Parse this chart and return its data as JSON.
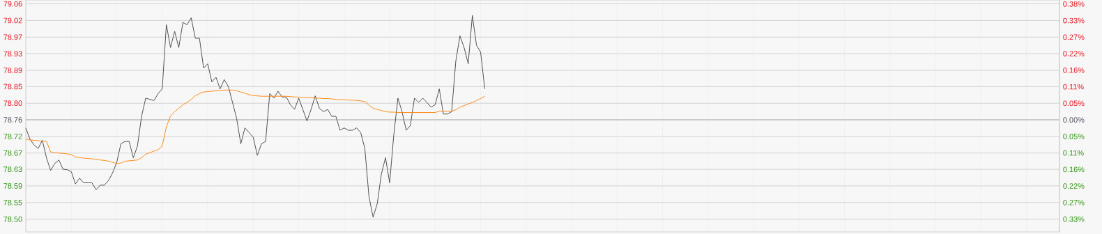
{
  "chart_data": {
    "type": "line",
    "categories": [
      null,
      null,
      null,
      null,
      null,
      null,
      null,
      null,
      null,
      null,
      null,
      null,
      null,
      null,
      null,
      null,
      null,
      null,
      null,
      null,
      null,
      null,
      null,
      null,
      null,
      null,
      null,
      null,
      null,
      null,
      null,
      null,
      null,
      null,
      null,
      null,
      null,
      null,
      null,
      null,
      null,
      null,
      null,
      null,
      null,
      null,
      null,
      null,
      null,
      null,
      null,
      null,
      null,
      null,
      null,
      null,
      null,
      null,
      null,
      null,
      null,
      null,
      null,
      null,
      null,
      null,
      null,
      null,
      null,
      null,
      null,
      null,
      null,
      null,
      null,
      null,
      null,
      null,
      null,
      null,
      null,
      null,
      null,
      null,
      null,
      null,
      null,
      null,
      null,
      null,
      null,
      null,
      null,
      null,
      null,
      null,
      null,
      null,
      null,
      null,
      null,
      null,
      null,
      null,
      null,
      null,
      null,
      null,
      null,
      null,
      null,
      null,
      null,
      null,
      null,
      null,
      null,
      null,
      null,
      null,
      null,
      null,
      null,
      null,
      null,
      null,
      null,
      null,
      null,
      null,
      null,
      null,
      null,
      null,
      null,
      null,
      null,
      null,
      null,
      null,
      null,
      null,
      null,
      null,
      null,
      null,
      null,
      null,
      null,
      null,
      null,
      null,
      null,
      null,
      null,
      null,
      null,
      null,
      null,
      null,
      null,
      null,
      null,
      null,
      null,
      null,
      null,
      null,
      null,
      null,
      null,
      null,
      null,
      null,
      null,
      null,
      null,
      null,
      null,
      null,
      null,
      null,
      null,
      null,
      null,
      null,
      null,
      null,
      null,
      null,
      null,
      null,
      null,
      null,
      null,
      null,
      null,
      null,
      null,
      null,
      null,
      null,
      null,
      null,
      null,
      null,
      null,
      null,
      null,
      null,
      null,
      null,
      null,
      null,
      null,
      null,
      null,
      null,
      null,
      null,
      null,
      null,
      null,
      null,
      null,
      null,
      null,
      null,
      null,
      null,
      null,
      null,
      null,
      null,
      null,
      null,
      null,
      null,
      null,
      null,
      null,
      null,
      null,
      null,
      null,
      null,
      null,
      null,
      null,
      null,
      null
    ],
    "series": [
      {
        "color": "#404040",
        "values": [
          78.739,
          78.71,
          78.695,
          78.686,
          78.707,
          78.662,
          78.629,
          78.647,
          78.656,
          78.632,
          78.631,
          78.626,
          78.594,
          78.609,
          78.597,
          78.597,
          78.597,
          78.579,
          78.591,
          78.591,
          78.603,
          78.623,
          78.65,
          78.698,
          78.704,
          78.704,
          78.662,
          78.692,
          78.769,
          78.816,
          78.813,
          78.81,
          78.828,
          78.84,
          79.006,
          78.947,
          78.989,
          78.947,
          79.012,
          79.006,
          79.024,
          78.971,
          78.971,
          78.894,
          78.905,
          78.858,
          78.87,
          78.84,
          78.864,
          78.846,
          78.805,
          78.763,
          78.698,
          78.739,
          78.727,
          78.715,
          78.668,
          78.698,
          78.704,
          78.828,
          78.816,
          78.834,
          78.819,
          78.819,
          78.799,
          78.787,
          78.816,
          78.787,
          78.757,
          78.787,
          78.822,
          78.79,
          78.781,
          78.787,
          78.769,
          78.769,
          78.733,
          78.739,
          78.733,
          78.733,
          78.739,
          78.727,
          78.686,
          78.561,
          78.508,
          78.543,
          78.62,
          78.662,
          78.597,
          78.721,
          78.816,
          78.781,
          78.733,
          78.745,
          78.816,
          78.805,
          78.816,
          78.805,
          78.793,
          78.799,
          78.84,
          78.775,
          78.775,
          78.781,
          78.912,
          78.977,
          78.947,
          78.905,
          79.03,
          78.953,
          78.935,
          78.84,
          null,
          null,
          null,
          null,
          null,
          null,
          null,
          null,
          null,
          null,
          null,
          null,
          null,
          null,
          null,
          null,
          null,
          null,
          null,
          null,
          null,
          null,
          null,
          null,
          null,
          null,
          null,
          null,
          null,
          null,
          null,
          null,
          null,
          null,
          null,
          null,
          null,
          null,
          null,
          null,
          null,
          null,
          null,
          null,
          null,
          null,
          null,
          null,
          null,
          null,
          null,
          null,
          null,
          null,
          null,
          null,
          null,
          null,
          null,
          null,
          null,
          null,
          null,
          null,
          null,
          null,
          null,
          null,
          null,
          null,
          null,
          null,
          null,
          null,
          null,
          null,
          null,
          null,
          null,
          null,
          null,
          null,
          null,
          null,
          null,
          null,
          null,
          null,
          null,
          null,
          null,
          null,
          null,
          null,
          null,
          null,
          null,
          null,
          null,
          null,
          null,
          null,
          null,
          null,
          null,
          null,
          null,
          null,
          null,
          null,
          null,
          null,
          null,
          null,
          null,
          null,
          null,
          null,
          null,
          null,
          null,
          null,
          null,
          null,
          null,
          null,
          null,
          null,
          null,
          null,
          null,
          null,
          null,
          null,
          null,
          null,
          null,
          null,
          null
        ]
      },
      {
        "color": "#ff8000",
        "values": [
          78.71,
          78.708,
          78.707,
          78.706,
          78.705,
          78.704,
          78.677,
          78.675,
          78.674,
          78.673,
          78.672,
          78.67,
          78.664,
          78.662,
          78.661,
          78.66,
          78.659,
          78.658,
          78.656,
          78.655,
          78.653,
          78.65,
          78.647,
          78.648,
          78.653,
          78.654,
          78.655,
          78.656,
          78.662,
          78.671,
          78.675,
          78.679,
          78.683,
          78.692,
          78.742,
          78.77,
          78.781,
          78.79,
          78.799,
          78.805,
          78.813,
          78.822,
          78.828,
          78.832,
          78.833,
          78.834,
          78.836,
          78.836,
          78.837,
          78.837,
          78.837,
          78.835,
          78.832,
          78.829,
          78.825,
          78.823,
          78.822,
          78.821,
          78.821,
          78.821,
          78.821,
          78.821,
          78.821,
          78.821,
          78.82,
          78.819,
          78.819,
          78.818,
          78.818,
          78.818,
          78.816,
          78.816,
          78.815,
          78.815,
          78.814,
          78.813,
          78.812,
          78.812,
          78.811,
          78.811,
          78.81,
          78.809,
          78.807,
          78.798,
          78.79,
          78.787,
          78.784,
          78.781,
          78.78,
          78.78,
          78.779,
          78.779,
          78.779,
          78.779,
          78.779,
          78.779,
          78.779,
          78.779,
          78.779,
          78.779,
          78.782,
          78.782,
          78.782,
          78.782,
          78.786,
          78.793,
          78.797,
          78.801,
          78.805,
          78.81,
          78.815,
          78.821,
          null,
          null,
          null,
          null,
          null,
          null,
          null,
          null,
          null,
          null,
          null,
          null,
          null,
          null,
          null,
          null,
          null,
          null,
          null,
          null,
          null,
          null,
          null,
          null,
          null,
          null,
          null,
          null,
          null,
          null,
          null,
          null,
          null,
          null,
          null,
          null,
          null,
          null,
          null,
          null,
          null,
          null,
          null,
          null,
          null,
          null,
          null,
          null,
          null,
          null,
          null,
          null,
          null,
          null,
          null,
          null,
          null,
          null,
          null,
          null,
          null,
          null,
          null,
          null,
          null,
          null,
          null,
          null,
          null,
          null,
          null,
          null,
          null,
          null,
          null,
          null,
          null,
          null,
          null,
          null,
          null,
          null,
          null,
          null,
          null,
          null,
          null,
          null,
          null,
          null,
          null,
          null,
          null,
          null,
          null,
          null,
          null,
          null,
          null,
          null,
          null,
          null,
          null,
          null,
          null,
          null,
          null,
          null,
          null,
          null,
          null,
          null,
          null,
          null,
          null,
          null,
          null,
          null,
          null,
          null,
          null,
          null,
          null,
          null,
          null,
          null,
          null,
          null,
          null,
          null,
          null,
          null,
          null,
          null,
          null,
          null,
          null,
          null,
          null
        ]
      }
    ],
    "ylim": [
      78.47,
      79.07
    ],
    "yticks": [
      {
        "value": 78.503,
        "label": "78.50"
      },
      {
        "value": 78.546,
        "label": "78.55"
      },
      {
        "value": 78.589,
        "label": "78.59"
      },
      {
        "value": 78.632,
        "label": "78.63"
      },
      {
        "value": 78.674,
        "label": "78.67"
      },
      {
        "value": 78.717,
        "label": "78.72"
      },
      {
        "value": 78.76,
        "label": "78.76"
      },
      {
        "value": 78.803,
        "label": "78.80"
      },
      {
        "value": 78.846,
        "label": "78.85"
      },
      {
        "value": 78.888,
        "label": "78.89"
      },
      {
        "value": 78.931,
        "label": "78.93"
      },
      {
        "value": 78.974,
        "label": "78.97"
      },
      {
        "value": 79.017,
        "label": "79.02"
      },
      {
        "value": 79.06,
        "label": "79.06"
      }
    ],
    "y2lim": [
      -0.3682,
      0.3936
    ],
    "y2ticks": [
      {
        "value": -0.3261,
        "label": "0.33%"
      },
      {
        "value": -0.2717,
        "label": "0.27%"
      },
      {
        "value": -0.2174,
        "label": "0.22%"
      },
      {
        "value": -0.163,
        "label": "0.16%"
      },
      {
        "value": -0.1087,
        "label": "0.11%"
      },
      {
        "value": -0.0543,
        "label": "0.05%"
      },
      {
        "value": 0,
        "label": "0.00%"
      },
      {
        "value": 0.0543,
        "label": "0.05%"
      },
      {
        "value": 0.1087,
        "label": "0.11%"
      },
      {
        "value": 0.163,
        "label": "0.16%"
      },
      {
        "value": 0.2174,
        "label": "0.22%"
      },
      {
        "value": 0.2717,
        "label": "0.27%"
      },
      {
        "value": 0.3261,
        "label": "0.33%"
      },
      {
        "value": 0.3804,
        "label": "0.38%"
      }
    ],
    "ref_lines": [
      {
        "axis": "y",
        "value": 78.76,
        "color": "#c0c0c0"
      }
    ],
    "grid": true
  }
}
